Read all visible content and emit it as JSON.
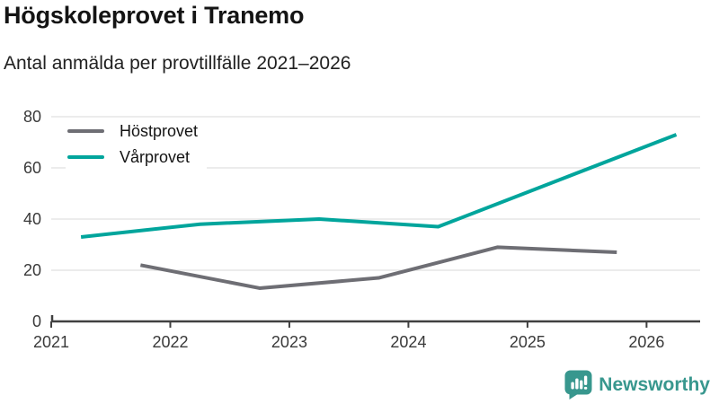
{
  "header": {
    "title": "Högskoleprovet i Tranemo",
    "subtitle": "Antal anmälda per provtillfälle 2021–2026"
  },
  "chart_data": {
    "type": "line",
    "title": "Högskoleprovet i Tranemo",
    "subtitle": "Antal anmälda per provtillfälle 2021–2026",
    "x_unit": "provtillfälle (decimal year: vår ≈ .25, höst ≈ .75)",
    "series": [
      {
        "name": "Höstprovet",
        "color": "#6e6e74",
        "x": [
          2021.75,
          2022.75,
          2023.75,
          2024.75,
          2025.75
        ],
        "values": [
          22,
          13,
          17,
          29,
          27
        ]
      },
      {
        "name": "Vårprovet",
        "color": "#00a59c",
        "x": [
          2021.25,
          2022.25,
          2023.25,
          2024.25,
          2025.25,
          2026.25
        ],
        "values": [
          33,
          38,
          40,
          37,
          55,
          73
        ]
      }
    ],
    "xticks": [
      2021,
      2022,
      2023,
      2024,
      2025,
      2026
    ],
    "yticks": [
      0,
      20,
      40,
      60,
      80
    ],
    "xlim": [
      2021,
      2026.45
    ],
    "ylim": [
      0,
      80
    ],
    "xlabel": "",
    "ylabel": "",
    "grid": "horizontal",
    "grid_color": "#e1e1e1",
    "axis_color": "#404040",
    "tick_label_color": "#3a3a3a",
    "legend_position": "top-left-inside"
  },
  "footer": {
    "brand": "Newsworthy",
    "logo_icon": "bar-chart-speech-bubble-icon",
    "brand_color": "#38978e"
  }
}
